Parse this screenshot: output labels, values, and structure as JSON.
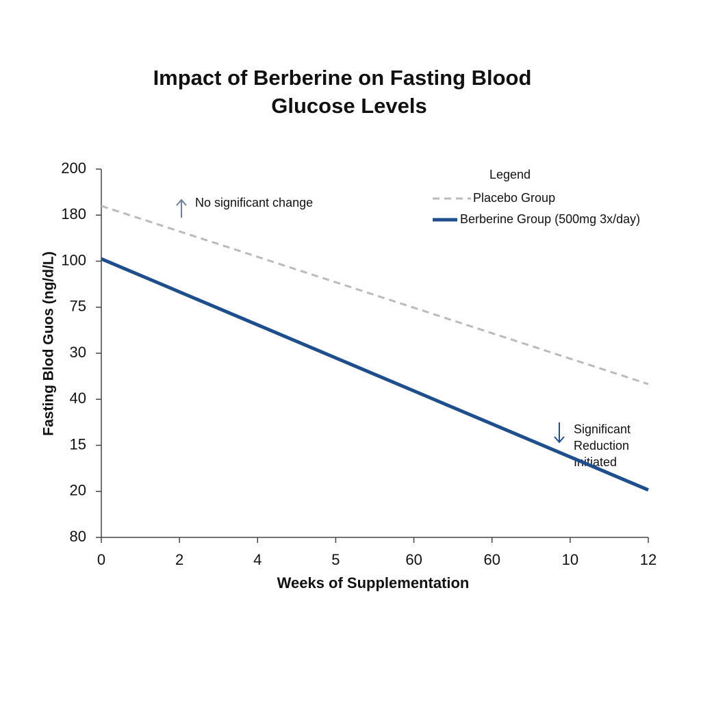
{
  "chart_data": {
    "type": "line",
    "title": [
      "Impact of Berberine on Fasting Blood",
      "Glucose Levels"
    ],
    "xlabel": "Weeks of Supplementation",
    "ylabel": "Fasting Blod Guos (ng/d/L)",
    "x": [
      0,
      7
    ],
    "xlim": [
      0,
      7
    ],
    "xticks": [
      0,
      {
        "value": 1,
        "label": "2"
      },
      {
        "value": 2,
        "label": "4"
      },
      {
        "value": 3,
        "label": "5"
      },
      {
        "value": 4,
        "label": "60"
      },
      {
        "value": 5,
        "label": "60"
      },
      {
        "value": 6,
        "label": "10"
      },
      {
        "value": 7,
        "label": "12"
      }
    ],
    "ylim": [
      0,
      8
    ],
    "yticks": [
      {
        "value": 0,
        "label": "80"
      },
      {
        "value": 1,
        "label": "20"
      },
      {
        "value": 2,
        "label": "15"
      },
      {
        "value": 3,
        "label": "40"
      },
      {
        "value": 4,
        "label": "30"
      },
      {
        "value": 5,
        "label": "75"
      },
      {
        "value": 6,
        "label": "100"
      },
      {
        "value": 7,
        "label": "180"
      },
      {
        "value": 8,
        "label": "200"
      }
    ],
    "series": [
      {
        "name": "Placebo Group",
        "color": "#bbbbbb",
        "dashed": true,
        "values": [
          7.2,
          3.33
        ]
      },
      {
        "name": "Berberine Group (500mg 3x/day)",
        "color": "#1f4e8c",
        "dashed": false,
        "values": [
          6.05,
          1.03
        ]
      }
    ],
    "legend_title": "Legend",
    "annotations": [
      {
        "text": [
          "No significant change"
        ]
      },
      {
        "text": [
          "Significant",
          "Reduction",
          "Initiated"
        ]
      }
    ]
  }
}
